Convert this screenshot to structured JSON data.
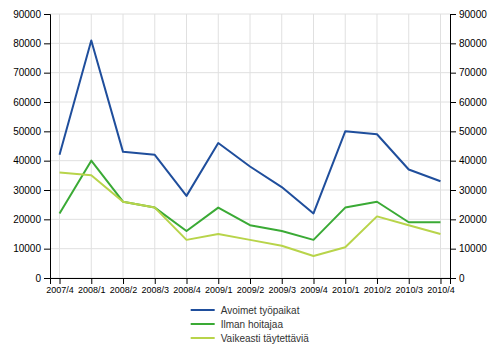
{
  "chart_data": {
    "type": "line",
    "categories": [
      "2007/4",
      "2008/1",
      "2008/2",
      "2008/3",
      "2008/4",
      "2009/1",
      "2009/2",
      "2009/3",
      "2009/4",
      "2010/1",
      "2010/2",
      "2010/3",
      "2010/4"
    ],
    "series": [
      {
        "name": "Avoimet työpaikat",
        "color": "#1f4e9c",
        "values": [
          42000,
          81000,
          43000,
          42000,
          28000,
          46000,
          38000,
          31000,
          22000,
          50000,
          49000,
          37000,
          33000
        ]
      },
      {
        "name": "Ilman hoitajaa",
        "color": "#3aaa35",
        "values": [
          22000,
          40000,
          26000,
          24000,
          16000,
          24000,
          18000,
          16000,
          13000,
          24000,
          26000,
          19000,
          19000
        ]
      },
      {
        "name": "Vaikeasti täytettäviä",
        "color": "#b8d44a",
        "values": [
          36000,
          35000,
          26000,
          24000,
          13000,
          15000,
          13000,
          11000,
          7500,
          10500,
          21000,
          18000,
          15000
        ]
      }
    ],
    "ylim": [
      0,
      90000
    ],
    "yticks": [
      0,
      10000,
      20000,
      30000,
      40000,
      50000,
      60000,
      70000,
      80000,
      90000
    ],
    "y2lim": [
      0,
      90000
    ],
    "y2ticks": [
      0,
      10000,
      20000,
      30000,
      40000,
      50000,
      60000,
      70000,
      80000,
      90000
    ],
    "grid": true,
    "legend": "bottom"
  }
}
